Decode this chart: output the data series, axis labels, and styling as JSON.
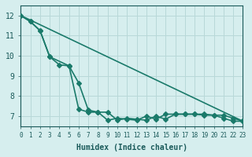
{
  "xlabel": "Humidex (Indice chaleur)",
  "xlim": [
    0,
    23
  ],
  "ylim": [
    6.5,
    12.5
  ],
  "yticks": [
    7,
    8,
    9,
    10,
    11,
    12
  ],
  "xticks": [
    0,
    1,
    2,
    3,
    4,
    5,
    6,
    7,
    8,
    9,
    10,
    11,
    12,
    13,
    14,
    15,
    16,
    17,
    18,
    19,
    20,
    21,
    22,
    23
  ],
  "bg_color": "#d6eeee",
  "grid_color": "#b8d8d8",
  "line_color": "#1a7a6a",
  "line1_x": [
    0,
    1,
    2,
    3,
    5,
    6,
    7,
    8,
    9,
    10,
    11,
    12,
    13,
    14,
    15,
    16,
    17,
    18,
    19,
    20,
    21,
    22,
    23
  ],
  "line1_y": [
    12.0,
    11.7,
    11.25,
    9.95,
    9.5,
    8.65,
    7.3,
    7.2,
    7.2,
    6.8,
    6.9,
    6.85,
    6.8,
    7.0,
    6.85,
    7.1,
    7.1,
    7.1,
    7.1,
    7.05,
    7.05,
    6.9,
    6.75
  ],
  "line2_x": [
    0,
    1,
    2,
    3,
    4,
    5,
    6,
    7,
    8,
    9,
    10,
    11,
    12,
    13,
    14,
    15,
    16,
    17,
    18,
    19,
    20,
    21,
    22,
    23
  ],
  "line2_y": [
    12.0,
    11.7,
    11.25,
    9.95,
    9.55,
    9.5,
    7.35,
    7.2,
    7.2,
    6.8,
    6.9,
    6.85,
    6.8,
    7.0,
    6.85,
    7.1,
    7.1,
    7.1,
    7.1,
    7.05,
    7.05,
    6.9,
    6.75,
    6.75
  ],
  "line3_x": [
    0,
    23
  ],
  "line3_y": [
    12.0,
    6.75
  ],
  "marker_size": 3.0,
  "line_width": 1.2
}
